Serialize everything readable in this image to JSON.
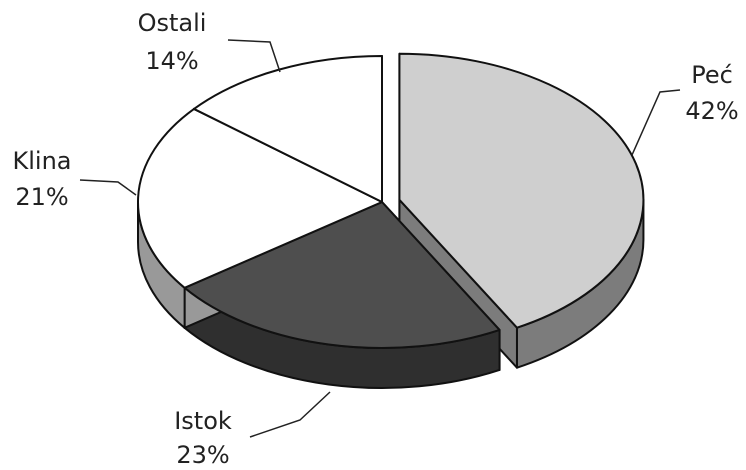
{
  "chart_data": {
    "type": "pie",
    "categories": [
      "Peć",
      "Istok",
      "Klina",
      "Ostali"
    ],
    "values": [
      42,
      23,
      21,
      14
    ],
    "value_labels": [
      "42%",
      "23%",
      "21%",
      "14%"
    ],
    "colors": [
      "#cfcfcf",
      "#4e4e4e",
      "#ffffff",
      "#ffffff"
    ],
    "explode": [
      true,
      false,
      false,
      false
    ]
  }
}
